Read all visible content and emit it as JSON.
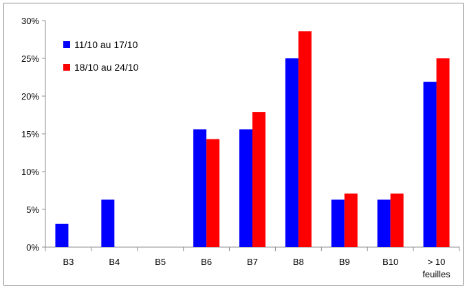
{
  "chart_data": {
    "type": "bar",
    "categories": [
      "B3",
      "B4",
      "B5",
      "B6",
      "B7",
      "B8",
      "B9",
      "B10",
      "> 10 feuilles"
    ],
    "category_labels": [
      [
        "B3"
      ],
      [
        "B4"
      ],
      [
        "B5"
      ],
      [
        "B6"
      ],
      [
        "B7"
      ],
      [
        "B8"
      ],
      [
        "B9"
      ],
      [
        "B10"
      ],
      [
        "> 10",
        "feuilles"
      ]
    ],
    "series": [
      {
        "name": "11/10 au 17/10",
        "color": "#0000ff",
        "values": [
          3.1,
          6.3,
          0,
          15.6,
          15.6,
          25.0,
          6.3,
          6.3,
          21.9
        ]
      },
      {
        "name": "18/10 au 24/10",
        "color": "#ff0000",
        "values": [
          0,
          0,
          0,
          14.3,
          17.9,
          28.6,
          7.1,
          7.1,
          25.0
        ]
      }
    ],
    "ylim": [
      0,
      30
    ],
    "yticks": [
      0,
      5,
      10,
      15,
      20,
      25,
      30
    ],
    "ytick_labels": [
      "0%",
      "5%",
      "10%",
      "15%",
      "20%",
      "25%",
      "30%"
    ],
    "grid": false,
    "legend_position": "top-left",
    "title": "",
    "xlabel": "",
    "ylabel": ""
  }
}
